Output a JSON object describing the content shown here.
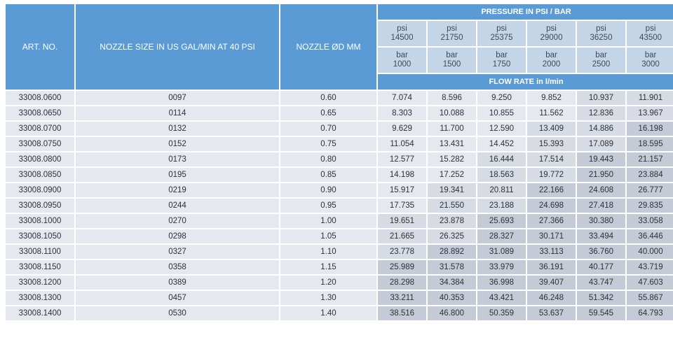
{
  "headers": {
    "art_no": "ART. NO.",
    "nozzle_size": "NOZZLE SIZE IN US GAL/MIN AT 40 PSI",
    "nozzle_dia": "NOZZLE ØD MM",
    "pressure_group": "PRESSURE IN PSI / BAR",
    "flow_rate_group": "FLOW RATE in l/min",
    "psi_unit": "psi",
    "bar_unit": "bar",
    "psi_values": [
      "14500",
      "21750",
      "25375",
      "29000",
      "36250",
      "43500"
    ],
    "bar_values": [
      "1000",
      "1500",
      "1750",
      "2000",
      "2500",
      "3000"
    ]
  },
  "rows": [
    {
      "art": "33008.0600",
      "size": "0097",
      "dia": "0.60",
      "flow": [
        "7.074",
        "8.596",
        "9.250",
        "9.852",
        "10.937",
        "11.901"
      ]
    },
    {
      "art": "33008.0650",
      "size": "0114",
      "dia": "0.65",
      "flow": [
        "8.303",
        "10.088",
        "10.855",
        "11.562",
        "12.836",
        "13.967"
      ]
    },
    {
      "art": "33008.0700",
      "size": "0132",
      "dia": "0.70",
      "flow": [
        "9.629",
        "11.700",
        "12.590",
        "13.409",
        "14.886",
        "16.198"
      ]
    },
    {
      "art": "33008.0750",
      "size": "0152",
      "dia": "0.75",
      "flow": [
        "11.054",
        "13.431",
        "14.452",
        "15.393",
        "17.089",
        "18.595"
      ]
    },
    {
      "art": "33008.0800",
      "size": "0173",
      "dia": "0.80",
      "flow": [
        "12.577",
        "15.282",
        "16.444",
        "17.514",
        "19.443",
        "21.157"
      ]
    },
    {
      "art": "33008.0850",
      "size": "0195",
      "dia": "0.85",
      "flow": [
        "14.198",
        "17.252",
        "18.563",
        "19.772",
        "21.950",
        "23.884"
      ]
    },
    {
      "art": "33008.0900",
      "size": "0219",
      "dia": "0.90",
      "flow": [
        "15.917",
        "19.341",
        "20.811",
        "22.166",
        "24.608",
        "26.777"
      ]
    },
    {
      "art": "33008.0950",
      "size": "0244",
      "dia": "0.95",
      "flow": [
        "17.735",
        "21.550",
        "23.188",
        "24.698",
        "27.418",
        "29.835"
      ]
    },
    {
      "art": "33008.1000",
      "size": "0270",
      "dia": "1.00",
      "flow": [
        "19.651",
        "23.878",
        "25.693",
        "27.366",
        "30.380",
        "33.058"
      ]
    },
    {
      "art": "33008.1050",
      "size": "0298",
      "dia": "1.05",
      "flow": [
        "21.665",
        "26.325",
        "28.327",
        "30.171",
        "33.494",
        "36.446"
      ]
    },
    {
      "art": "33008.1100",
      "size": "0327",
      "dia": "1.10",
      "flow": [
        "23.778",
        "28.892",
        "31.089",
        "33.113",
        "36.760",
        "40.000"
      ]
    },
    {
      "art": "33008.1150",
      "size": "0358",
      "dia": "1.15",
      "flow": [
        "25.989",
        "31.578",
        "33.979",
        "36.191",
        "40.177",
        "43.719"
      ]
    },
    {
      "art": "33008.1200",
      "size": "0389",
      "dia": "1.20",
      "flow": [
        "28.298",
        "34.384",
        "36.998",
        "39.407",
        "43.747",
        "47.603"
      ]
    },
    {
      "art": "33008.1300",
      "size": "0457",
      "dia": "1.30",
      "flow": [
        "33.211",
        "40.353",
        "43.421",
        "46.248",
        "51.342",
        "55.867"
      ]
    },
    {
      "art": "33008.1400",
      "size": "0530",
      "dia": "1.40",
      "flow": [
        "38.516",
        "46.800",
        "50.359",
        "53.637",
        "59.545",
        "64.793"
      ]
    }
  ],
  "colors": {
    "header_bg": "#5b9bd5",
    "subheader_bg": "#c5d5e8",
    "cell_bg": "#e5e8ee",
    "cell_shade_1": "#d6dbe4",
    "cell_shade_2": "#c4cad6"
  }
}
